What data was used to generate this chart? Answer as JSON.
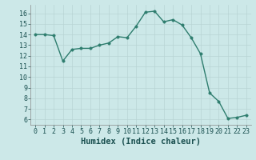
{
  "x": [
    0,
    1,
    2,
    3,
    4,
    5,
    6,
    7,
    8,
    9,
    10,
    11,
    12,
    13,
    14,
    15,
    16,
    17,
    18,
    19,
    20,
    21,
    22,
    23
  ],
  "y": [
    14.0,
    14.0,
    13.9,
    11.5,
    12.6,
    12.7,
    12.7,
    13.0,
    13.2,
    13.8,
    13.7,
    14.8,
    16.1,
    16.2,
    15.2,
    15.4,
    14.9,
    13.7,
    12.2,
    8.5,
    7.7,
    6.1,
    6.2,
    6.4
  ],
  "line_color": "#2e7d6e",
  "marker": "o",
  "marker_size": 2.5,
  "bg_color": "#cce8e8",
  "grid_color": "#b8d4d4",
  "xlabel": "Humidex (Indice chaleur)",
  "ylim": [
    5.5,
    16.8
  ],
  "xlim": [
    -0.5,
    23.5
  ],
  "yticks": [
    6,
    7,
    8,
    9,
    10,
    11,
    12,
    13,
    14,
    15,
    16
  ],
  "xticks": [
    0,
    1,
    2,
    3,
    4,
    5,
    6,
    7,
    8,
    9,
    10,
    11,
    12,
    13,
    14,
    15,
    16,
    17,
    18,
    19,
    20,
    21,
    22,
    23
  ],
  "tick_label_fontsize": 6,
  "xlabel_fontsize": 7.5,
  "tick_color": "#1a5050",
  "axis_color": "#1a5050",
  "spine_color": "#888888"
}
